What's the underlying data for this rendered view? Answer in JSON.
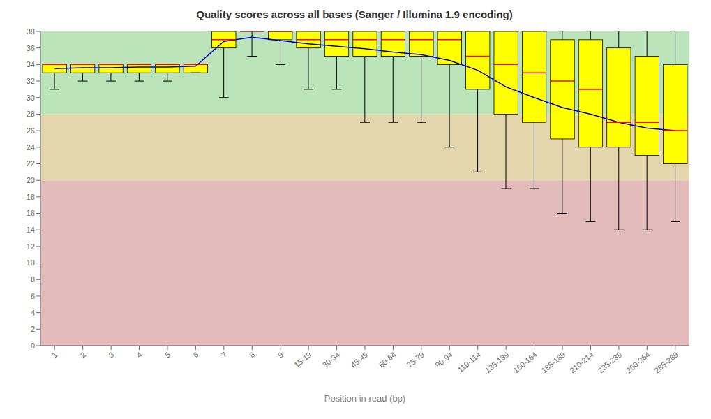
{
  "chart_data": {
    "type": "box",
    "title": "Quality scores across all bases (Sanger / Illumina 1.9 encoding)",
    "xlabel": "Position in read (bp)",
    "categories": [
      "1",
      "2",
      "3",
      "4",
      "5",
      "6",
      "7",
      "8",
      "9",
      "15-19",
      "30-34",
      "45-49",
      "60-64",
      "75-79",
      "90-94",
      "110-114",
      "135-139",
      "160-164",
      "185-189",
      "210-214",
      "235-239",
      "260-264",
      "285-289"
    ],
    "box": {
      "q1": [
        33,
        33,
        33,
        33,
        33,
        33,
        36,
        38,
        37,
        36,
        35,
        35,
        35,
        35,
        34,
        31,
        28,
        27,
        25,
        24,
        24,
        23,
        22
      ],
      "q3": [
        34,
        34,
        34,
        34,
        34,
        34,
        38,
        38,
        38,
        38,
        38,
        38,
        38,
        38,
        38,
        38,
        38,
        38,
        37,
        37,
        36,
        35,
        34
      ],
      "color": "#ffff00"
    },
    "median": {
      "values": [
        34,
        34,
        34,
        34,
        34,
        34,
        37,
        38,
        38,
        37,
        37,
        37,
        37,
        37,
        37,
        35,
        34,
        33,
        32,
        31,
        27,
        27,
        26
      ],
      "color": "#ff0000"
    },
    "whiskers": {
      "lo": [
        31,
        32,
        32,
        32,
        32,
        33,
        30,
        35,
        34,
        31,
        31,
        27,
        27,
        27,
        24,
        21,
        19,
        19,
        16,
        15,
        14,
        14,
        15
      ],
      "hi": [
        34,
        34,
        34,
        34,
        34,
        34,
        38,
        38,
        38,
        38,
        38,
        38,
        38,
        38,
        38,
        38,
        38,
        38,
        38,
        38,
        38,
        38,
        38
      ],
      "color": "#000000"
    },
    "mean": {
      "values": [
        33.5,
        33.6,
        33.6,
        33.7,
        33.7,
        33.8,
        36.8,
        37.3,
        36.9,
        36.5,
        36.2,
        35.9,
        35.5,
        35.2,
        34.5,
        33.3,
        31.3,
        30.0,
        28.8,
        28.0,
        27.0,
        26.3,
        26.0
      ],
      "color": "#0000cc"
    },
    "bands": [
      {
        "from": 0,
        "to": 20,
        "color": "#ddaaaa"
      },
      {
        "from": 20,
        "to": 28,
        "color": "#ddcc99"
      },
      {
        "from": 28,
        "to": 38,
        "color": "#aaddaa"
      }
    ],
    "ylim": [
      0,
      38
    ],
    "yticks": [
      0,
      2,
      4,
      6,
      8,
      10,
      12,
      14,
      16,
      18,
      20,
      22,
      24,
      26,
      28,
      30,
      32,
      34,
      36,
      38
    ],
    "grid": false
  }
}
